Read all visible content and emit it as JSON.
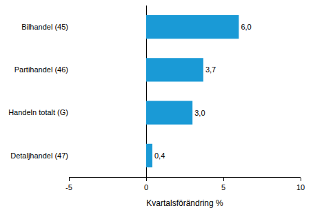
{
  "chart_data": {
    "type": "bar",
    "orientation": "horizontal",
    "categories": [
      "Bilhandel (45)",
      "Partihandel (46)",
      "Handeln totalt (G)",
      "Detaljhandel (47)"
    ],
    "values": [
      6.0,
      3.7,
      3.0,
      0.4
    ],
    "value_labels": [
      "6,0",
      "3,7",
      "3,0",
      "0,4"
    ],
    "data_labels": true,
    "color": "#1a9ad6",
    "xlabel": "Kvartalsförändring %",
    "xlim": [
      -5,
      10
    ],
    "xticks": [
      -5,
      0,
      5,
      10
    ],
    "grid": false
  }
}
